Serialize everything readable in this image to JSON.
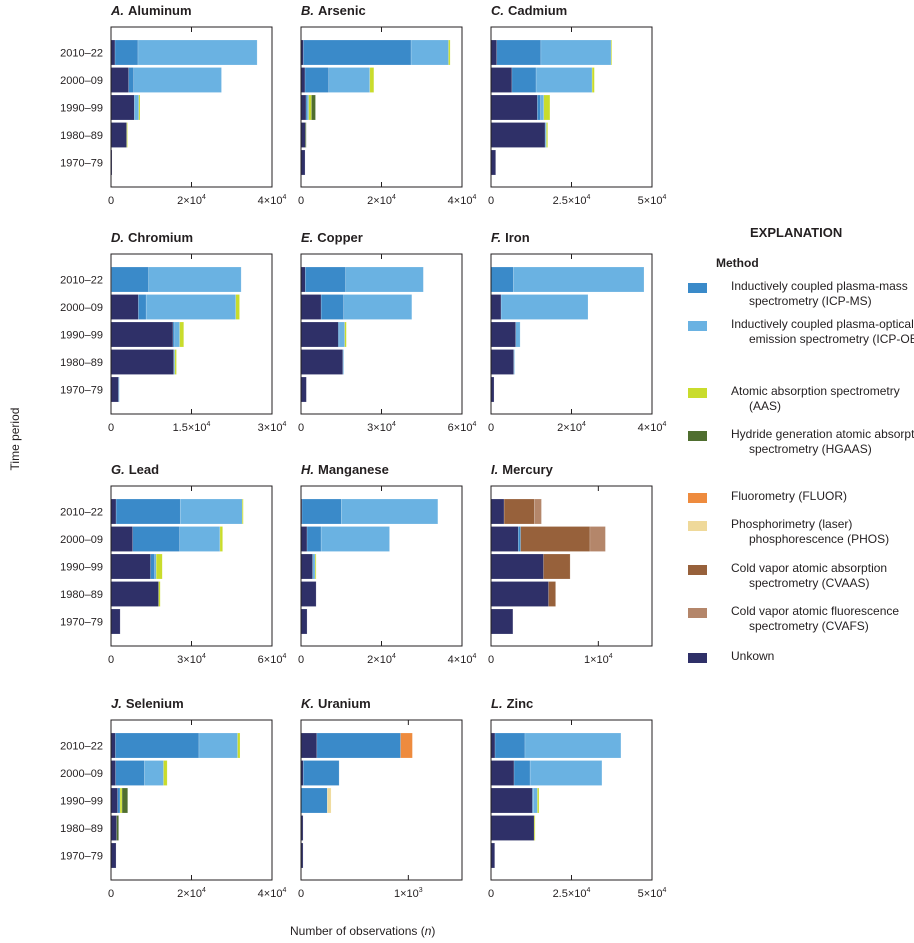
{
  "chart_data": {
    "type": "bar",
    "orientation": "horizontal",
    "stacked": true,
    "ylabel": "Time period",
    "xlabel": "Number of observations (n)",
    "categories": [
      "2010–22",
      "2000–09",
      "1990–99",
      "1980–89",
      "1970–79"
    ],
    "grid": false,
    "legend": {
      "title": "EXPLANATION",
      "subtitle": "Method",
      "placement": "right",
      "items": [
        {
          "key": "ICP-MS",
          "label": "Inductively coupled plasma-mass spectrometry (ICP-MS)",
          "color": "#3a8ac9"
        },
        {
          "key": "ICP-OES",
          "label": "Inductively coupled plasma-optical emission spectrometry (ICP-OES)",
          "color": "#6ab2e2"
        },
        {
          "key": "AAS",
          "label": "Atomic absorption spectrometry (AAS)",
          "color": "#c9dc2c"
        },
        {
          "key": "HGAAS",
          "label": "Hydride generation atomic absorption spectrometry (HGAAS)",
          "color": "#4f6e2f"
        },
        {
          "key": "FLUOR",
          "label": "Fluorometry (FLUOR)",
          "color": "#ee8b3e"
        },
        {
          "key": "PHOS",
          "label": "Phosphorimetry (laser) phosphorescence (PHOS)",
          "color": "#efd99a"
        },
        {
          "key": "CVAAS",
          "label": "Cold vapor atomic absorption spectrometry (CVAAS)",
          "color": "#97613b"
        },
        {
          "key": "CVAFS",
          "label": "Cold vapor atomic fluorescence spectrometry (CVAFS)",
          "color": "#b4866a"
        },
        {
          "key": "Unknown",
          "label": "Unkown",
          "color": "#2f3068"
        }
      ]
    },
    "panels": [
      {
        "letter": "A.",
        "title": "Aluminum",
        "xlim": [
          0,
          40000
        ],
        "xticks": [
          0,
          20000,
          40000
        ],
        "xtick_labels": [
          "0",
          "2×10⁴",
          "4×10⁴"
        ],
        "series": [
          {
            "method": "Unknown",
            "values": [
              1000,
              4400,
              5800,
              3900,
              250
            ]
          },
          {
            "method": "ICP-MS",
            "values": [
              5700,
              1250,
              0,
              0,
              0
            ]
          },
          {
            "method": "ICP-OES",
            "values": [
              29600,
              21800,
              1100,
              0,
              0
            ]
          },
          {
            "method": "AAS",
            "values": [
              0,
              0,
              300,
              200,
              0
            ]
          }
        ]
      },
      {
        "letter": "B.",
        "title": "Arsenic",
        "xlim": [
          0,
          40000
        ],
        "xticks": [
          0,
          20000,
          40000
        ],
        "xtick_labels": [
          "0",
          "2×10⁴",
          "4×10⁴"
        ],
        "series": [
          {
            "method": "Unknown",
            "values": [
              600,
              1000,
              1250,
              1100,
              1000
            ]
          },
          {
            "method": "ICP-MS",
            "values": [
              26750,
              5900,
              400,
              0,
              0
            ]
          },
          {
            "method": "ICP-OES",
            "values": [
              9300,
              10200,
              250,
              0,
              0
            ]
          },
          {
            "method": "AAS",
            "values": [
              400,
              1000,
              700,
              0,
              0
            ]
          },
          {
            "method": "HGAAS",
            "values": [
              0,
              0,
              1000,
              150,
              0
            ]
          }
        ]
      },
      {
        "letter": "C.",
        "title": "Cadmium",
        "xlim": [
          0,
          50000
        ],
        "xticks": [
          0,
          25000,
          50000
        ],
        "xtick_labels": [
          "0",
          "2.5×10⁴",
          "5×10⁴"
        ],
        "series": [
          {
            "method": "Unknown",
            "values": [
              1800,
              6500,
              14400,
              16800,
              1450
            ]
          },
          {
            "method": "ICP-MS",
            "values": [
              13700,
              7500,
              1000,
              0,
              0
            ]
          },
          {
            "method": "ICP-OES",
            "values": [
              21800,
              17400,
              1000,
              400,
              0
            ]
          },
          {
            "method": "AAS",
            "values": [
              200,
              700,
              1900,
              400,
              0
            ]
          }
        ]
      },
      {
        "letter": "D.",
        "title": "Chromium",
        "xlim": [
          0,
          30000
        ],
        "xticks": [
          0,
          15000,
          30000
        ],
        "xtick_labels": [
          "0",
          "1.5×10⁴",
          "3×10⁴"
        ],
        "series": [
          {
            "method": "Unknown",
            "values": [
              100,
              5100,
              11550,
              11700,
              1400
            ]
          },
          {
            "method": "ICP-MS",
            "values": [
              6900,
              1450,
              300,
              0,
              0
            ]
          },
          {
            "method": "ICP-OES",
            "values": [
              17250,
              16700,
              950,
              200,
              100
            ]
          },
          {
            "method": "AAS",
            "values": [
              0,
              700,
              750,
              300,
              0
            ]
          }
        ]
      },
      {
        "letter": "E.",
        "title": "Copper",
        "xlim": [
          0,
          60000
        ],
        "xticks": [
          0,
          30000,
          60000
        ],
        "xtick_labels": [
          "0",
          "3×10⁴",
          "6×10⁴"
        ],
        "series": [
          {
            "method": "Unknown",
            "values": [
              1600,
              7500,
              13900,
              15600,
              2000
            ]
          },
          {
            "method": "ICP-MS",
            "values": [
              15000,
              8400,
              500,
              0,
              0
            ]
          },
          {
            "method": "ICP-OES",
            "values": [
              29000,
              25400,
              1900,
              200,
              0
            ]
          },
          {
            "method": "AAS",
            "values": [
              0,
              0,
              600,
              0,
              0
            ]
          }
        ]
      },
      {
        "letter": "F.",
        "title": "Iron",
        "xlim": [
          0,
          40000
        ],
        "xticks": [
          0,
          20000,
          40000
        ],
        "xtick_labels": [
          "0",
          "2×10⁴",
          "4×10⁴"
        ],
        "series": [
          {
            "method": "Unknown",
            "values": [
              0,
              2500,
              6150,
              5650,
              750
            ]
          },
          {
            "method": "ICP-MS",
            "values": [
              5560,
              0,
              0,
              0,
              0
            ]
          },
          {
            "method": "ICP-OES",
            "values": [
              32450,
              21600,
              1080,
              100,
              0
            ]
          }
        ]
      },
      {
        "letter": "G.",
        "title": "Lead",
        "xlim": [
          0,
          60000
        ],
        "xticks": [
          0,
          30000,
          60000
        ],
        "xtick_labels": [
          "0",
          "3×10⁴",
          "6×10⁴"
        ],
        "series": [
          {
            "method": "Unknown",
            "values": [
              1900,
              8100,
              14750,
              17750,
              3400
            ]
          },
          {
            "method": "ICP-MS",
            "values": [
              23900,
              17500,
              1500,
              0,
              0
            ]
          },
          {
            "method": "ICP-OES",
            "values": [
              23100,
              15000,
              600,
              0,
              0
            ]
          },
          {
            "method": "AAS",
            "values": [
              400,
              1000,
              2250,
              600,
              0
            ]
          }
        ]
      },
      {
        "letter": "H.",
        "title": "Manganese",
        "xlim": [
          0,
          40000
        ],
        "xticks": [
          0,
          20000,
          40000
        ],
        "xtick_labels": [
          "0",
          "2×10⁴",
          "4×10⁴"
        ],
        "series": [
          {
            "method": "Unknown",
            "values": [
              250,
              1500,
              2900,
              3750,
              1500
            ]
          },
          {
            "method": "ICP-MS",
            "values": [
              9750,
              3500,
              0,
              0,
              0
            ]
          },
          {
            "method": "ICP-OES",
            "values": [
              24000,
              17000,
              600,
              0,
              0
            ]
          },
          {
            "method": "AAS",
            "values": [
              0,
              0,
              250,
              0,
              0
            ]
          }
        ]
      },
      {
        "letter": "I.",
        "title": "Mercury",
        "xlim": [
          0,
          15000
        ],
        "xticks": [
          0,
          10000
        ],
        "xtick_labels": [
          "0",
          "1×10⁴"
        ],
        "series": [
          {
            "method": "Unknown",
            "values": [
              1220,
              2540,
              4890,
              5360,
              2040
            ]
          },
          {
            "method": "ICP-MS",
            "values": [
              0,
              220,
              0,
              0,
              0
            ]
          },
          {
            "method": "CVAAS",
            "values": [
              2820,
              6460,
              2480,
              660,
              0
            ]
          },
          {
            "method": "CVAFS",
            "values": [
              660,
              1440,
              0,
              0,
              0
            ]
          }
        ]
      },
      {
        "letter": "J.",
        "title": "Selenium",
        "xlim": [
          0,
          40000
        ],
        "xticks": [
          0,
          20000,
          40000
        ],
        "xtick_labels": [
          "0",
          "2×10⁴",
          "4×10⁴"
        ],
        "series": [
          {
            "method": "Unknown",
            "values": [
              1100,
              1150,
              1650,
              1400,
              1250
            ]
          },
          {
            "method": "ICP-MS",
            "values": [
              20750,
              7150,
              600,
              0,
              0
            ]
          },
          {
            "method": "ICP-OES",
            "values": [
              9600,
              4750,
              0,
              0,
              0
            ]
          },
          {
            "method": "AAS",
            "values": [
              600,
              900,
              500,
              0,
              0
            ]
          },
          {
            "method": "HGAAS",
            "values": [
              0,
              0,
              1400,
              500,
              0
            ]
          }
        ]
      },
      {
        "letter": "K.",
        "title": "Uranium",
        "xlim": [
          0,
          1500
        ],
        "xticks": [
          0,
          1000
        ],
        "xtick_labels": [
          "0",
          "1×10³"
        ],
        "series": [
          {
            "method": "Unknown",
            "values": [
              148,
              22,
              0,
              19,
              19
            ]
          },
          {
            "method": "ICP-MS",
            "values": [
              780,
              333,
              245,
              0,
              0
            ]
          },
          {
            "method": "FLUOR",
            "values": [
              110,
              0,
              0,
              0,
              0
            ]
          },
          {
            "method": "PHOS",
            "values": [
              0,
              0,
              35,
              0,
              0
            ]
          }
        ]
      },
      {
        "letter": "L.",
        "title": "Zinc",
        "xlim": [
          0,
          50000
        ],
        "xticks": [
          0,
          25000,
          50000
        ],
        "xtick_labels": [
          "0",
          "2.5×10⁴",
          "5×10⁴"
        ],
        "series": [
          {
            "method": "Unknown",
            "values": [
              1250,
              7150,
              12850,
              13400,
              1150
            ]
          },
          {
            "method": "ICP-MS",
            "values": [
              9300,
              5000,
              300,
              0,
              0
            ]
          },
          {
            "method": "ICP-OES",
            "values": [
              29800,
              22300,
              1250,
              0,
              0
            ]
          },
          {
            "method": "AAS",
            "values": [
              0,
              0,
              500,
              300,
              0
            ]
          }
        ]
      }
    ]
  }
}
